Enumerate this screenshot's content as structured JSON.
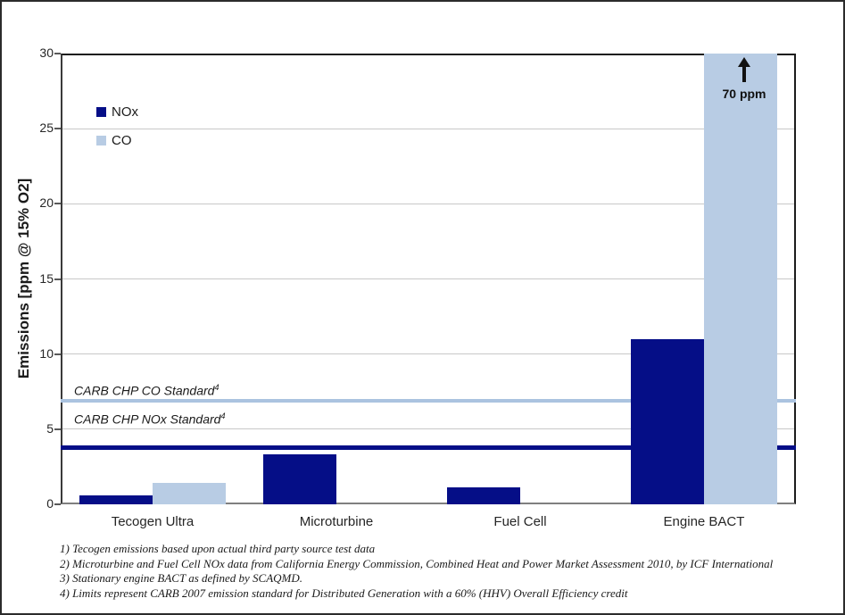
{
  "chart_data": {
    "type": "bar",
    "title": "",
    "xlabel": "",
    "ylabel": "Emissions [ppm @ 15% O2]",
    "ylim": [
      0,
      30
    ],
    "yticks": [
      0,
      5,
      10,
      15,
      20,
      25,
      30
    ],
    "grid": "horizontal",
    "legend_position": "upper-left-inside",
    "categories": [
      "Tecogen Ultra",
      "Microturbine",
      "Fuel Cell",
      "Engine BACT"
    ],
    "series": [
      {
        "name": "NOx",
        "color": "#050e87",
        "values": [
          0.6,
          3.3,
          1.1,
          11
        ]
      },
      {
        "name": "CO",
        "color": "#b8cce4",
        "values": [
          1.4,
          0,
          0,
          70
        ]
      }
    ],
    "reference_lines": [
      {
        "label": "CARB CHP CO Standard",
        "superscript": "4",
        "value": 6.9,
        "color": "#abc3e0",
        "thickness": 4
      },
      {
        "label": "CARB CHP NOx Standard",
        "superscript": "4",
        "value": 3.8,
        "color": "#050e87",
        "thickness": 5
      }
    ],
    "annotations": [
      {
        "target": "Engine BACT CO bar (exceeds axis)",
        "symbol": "up-arrow",
        "text": "70 ppm"
      }
    ]
  },
  "footnotes": [
    "1) Tecogen emissions based upon actual third party source test data",
    "2) Microturbine and Fuel Cell NOx data from California Energy Commission, Combined Heat and Power Market Assessment 2010, by ICF International",
    "3) Stationary engine BACT as defined by SCAQMD.",
    "4) Limits represent CARB 2007 emission standard for Distributed Generation with a 60% (HHV) Overall Efficiency credit"
  ]
}
